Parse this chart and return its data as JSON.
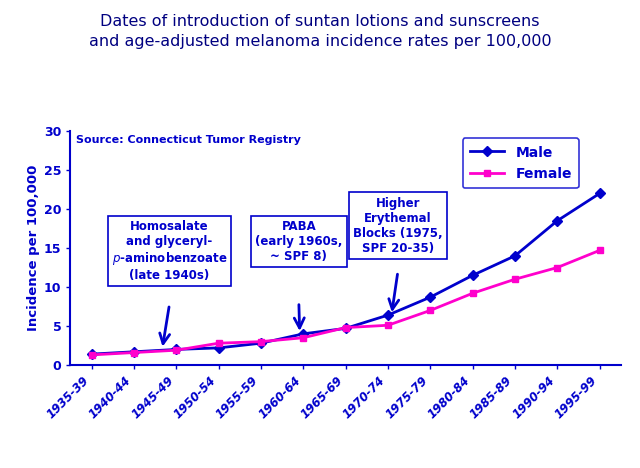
{
  "title": "Dates of introduction of suntan lotions and sunscreens\nand age-adjusted melanoma incidence rates per 100,000",
  "source_text": "Source: Connecticut Tumor Registry",
  "ylabel": "Incidence per 100,000",
  "categories": [
    "1935-39",
    "1940-44",
    "1945-49",
    "1950-54",
    "1955-59",
    "1960-64",
    "1965-69",
    "1970-74",
    "1975-79",
    "1980-84",
    "1985-89",
    "1990-94",
    "1995-99"
  ],
  "male_values": [
    1.4,
    1.7,
    2.0,
    2.2,
    2.8,
    4.0,
    4.7,
    6.4,
    8.7,
    11.5,
    14.0,
    18.5,
    22.0
  ],
  "female_values": [
    1.3,
    1.6,
    1.9,
    2.8,
    3.0,
    3.5,
    4.8,
    5.1,
    7.0,
    9.2,
    11.0,
    12.5,
    14.7
  ],
  "male_color": "#0000CC",
  "female_color": "#FF00CC",
  "ylim": [
    0,
    30
  ],
  "yticks": [
    0,
    5,
    10,
    15,
    20,
    25,
    30
  ],
  "title_color": "#000080",
  "ann1_text_lines": [
    "Homosalate",
    "and glyceryl-",
    "p-aminobenzoate",
    "(late 1940s)"
  ],
  "ann1_italic_line": 2,
  "ann2_text": "PABA\n(early 1960s,\n~ SPF 8)",
  "ann3_text": "Higher\nErythemal\nBlocks (1975,\nSPF 20-35)",
  "legend_male": "Male",
  "legend_female": "Female",
  "figsize": [
    6.4,
    4.68
  ],
  "dpi": 100
}
